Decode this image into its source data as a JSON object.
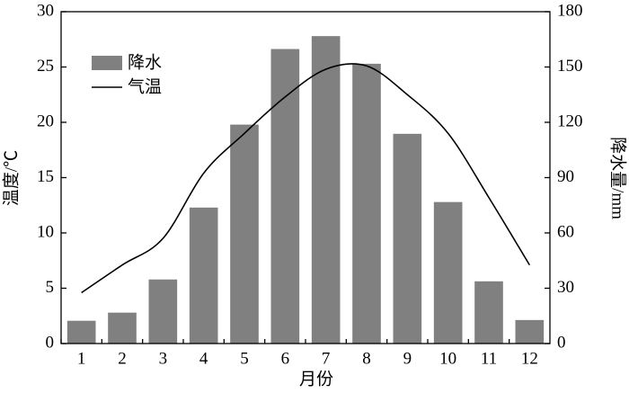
{
  "chart_data": {
    "type": "bar",
    "x_label": "月份",
    "y_label": "温度/℃",
    "y2_label": "降水量/mm",
    "categories": [
      "1",
      "2",
      "3",
      "4",
      "5",
      "6",
      "7",
      "8",
      "9",
      "10",
      "11",
      "12"
    ],
    "series": [
      {
        "name": "降水",
        "type": "bar",
        "axis": "y2",
        "color": "#808080",
        "values": [
          12.6,
          17,
          35,
          74,
          119,
          160,
          167,
          152,
          114,
          77,
          34,
          13
        ]
      },
      {
        "name": "气温",
        "type": "line",
        "color": "#000000",
        "values": [
          4.6,
          7.1,
          9.5,
          15.4,
          19.0,
          22.3,
          24.8,
          25.1,
          22.5,
          19.0,
          13.2,
          7.1
        ]
      }
    ],
    "ylim": [
      0,
      30
    ],
    "yticks": [
      0,
      5,
      10,
      15,
      20,
      25,
      30
    ],
    "y2lim": [
      0,
      180
    ],
    "y2ticks": [
      0,
      30,
      60,
      90,
      120,
      150,
      180
    ],
    "legend": "upper left",
    "grid": false
  }
}
